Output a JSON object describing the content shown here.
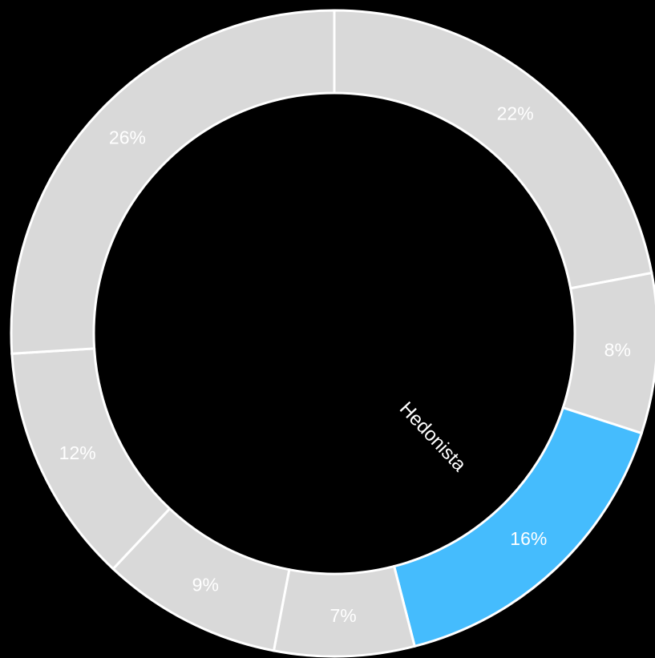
{
  "chart_data": {
    "type": "donut",
    "categories": [
      null,
      null,
      "Hedonista",
      null,
      null,
      null,
      null
    ],
    "values": [
      22,
      8,
      16,
      7,
      9,
      12,
      26
    ],
    "value_labels": [
      "22%",
      "8%",
      "16%",
      "7%",
      "9%",
      "12%",
      "26%"
    ],
    "colors": [
      "#d9d9d9",
      "#d9d9d9",
      "#45bcfd",
      "#d9d9d9",
      "#d9d9d9",
      "#d9d9d9",
      "#d9d9d9"
    ]
  }
}
